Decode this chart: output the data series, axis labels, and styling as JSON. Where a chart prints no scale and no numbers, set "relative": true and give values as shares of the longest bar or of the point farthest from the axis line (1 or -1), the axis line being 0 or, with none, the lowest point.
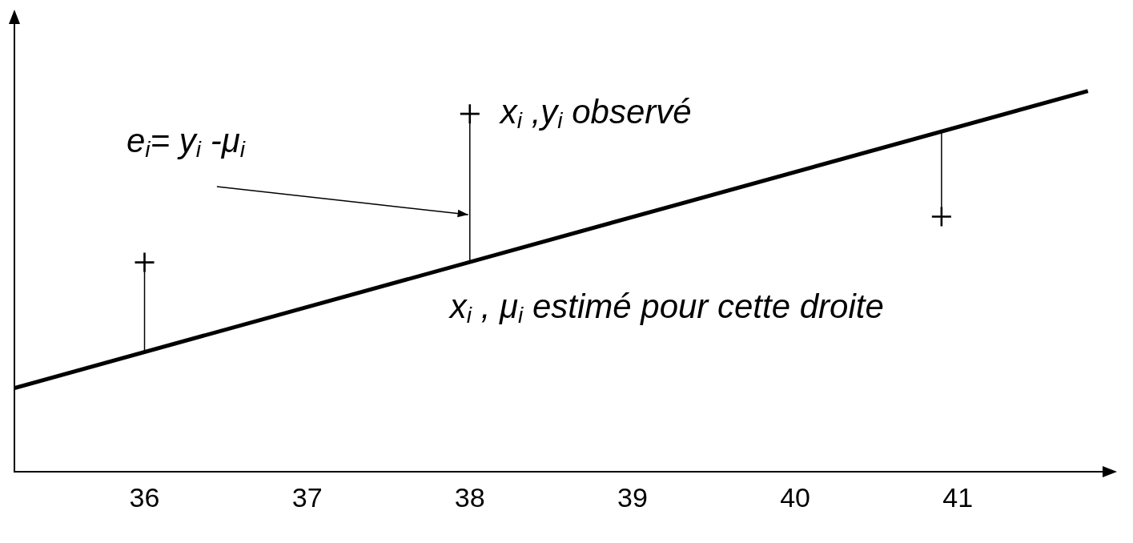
{
  "chart_data": {
    "type": "scatter",
    "relative": true,
    "xlim": [
      35.2,
      41.9
    ],
    "xticks": [
      36,
      37,
      38,
      39,
      40,
      41
    ],
    "grid": false,
    "legend": false,
    "series": [
      {
        "type": "line",
        "color": "#000000",
        "x": [
          35.2,
          41.8
        ],
        "values": [
          0.22,
          1
        ]
      },
      {
        "color": "#000000",
        "marker": "cross",
        "x": [
          36,
          38,
          40.9
        ],
        "values": [
          0.55,
          0.94,
          0.67
        ]
      },
      {
        "type": "line",
        "color": "#000000",
        "x": [
          36,
          36
        ],
        "values": [
          0.31,
          0.55
        ]
      },
      {
        "type": "line",
        "color": "#000000",
        "x": [
          38,
          38
        ],
        "values": [
          0.55,
          0.94
        ]
      },
      {
        "type": "line",
        "color": "#000000",
        "x": [
          40.9,
          40.9
        ],
        "values": [
          0.67,
          0.89
        ]
      }
    ],
    "annotations": [
      {
        "text": "x$_{i}$ ,y$_{i}$ observé",
        "x": 38,
        "y": 0.94
      },
      {
        "text": "x$_{i}$ , μ$_{i}$ estimé pour cette droite",
        "x": 38,
        "y": 0.55
      },
      "e$_{i}$= y$_{i}$ -μ$_{i}$"
    ]
  }
}
